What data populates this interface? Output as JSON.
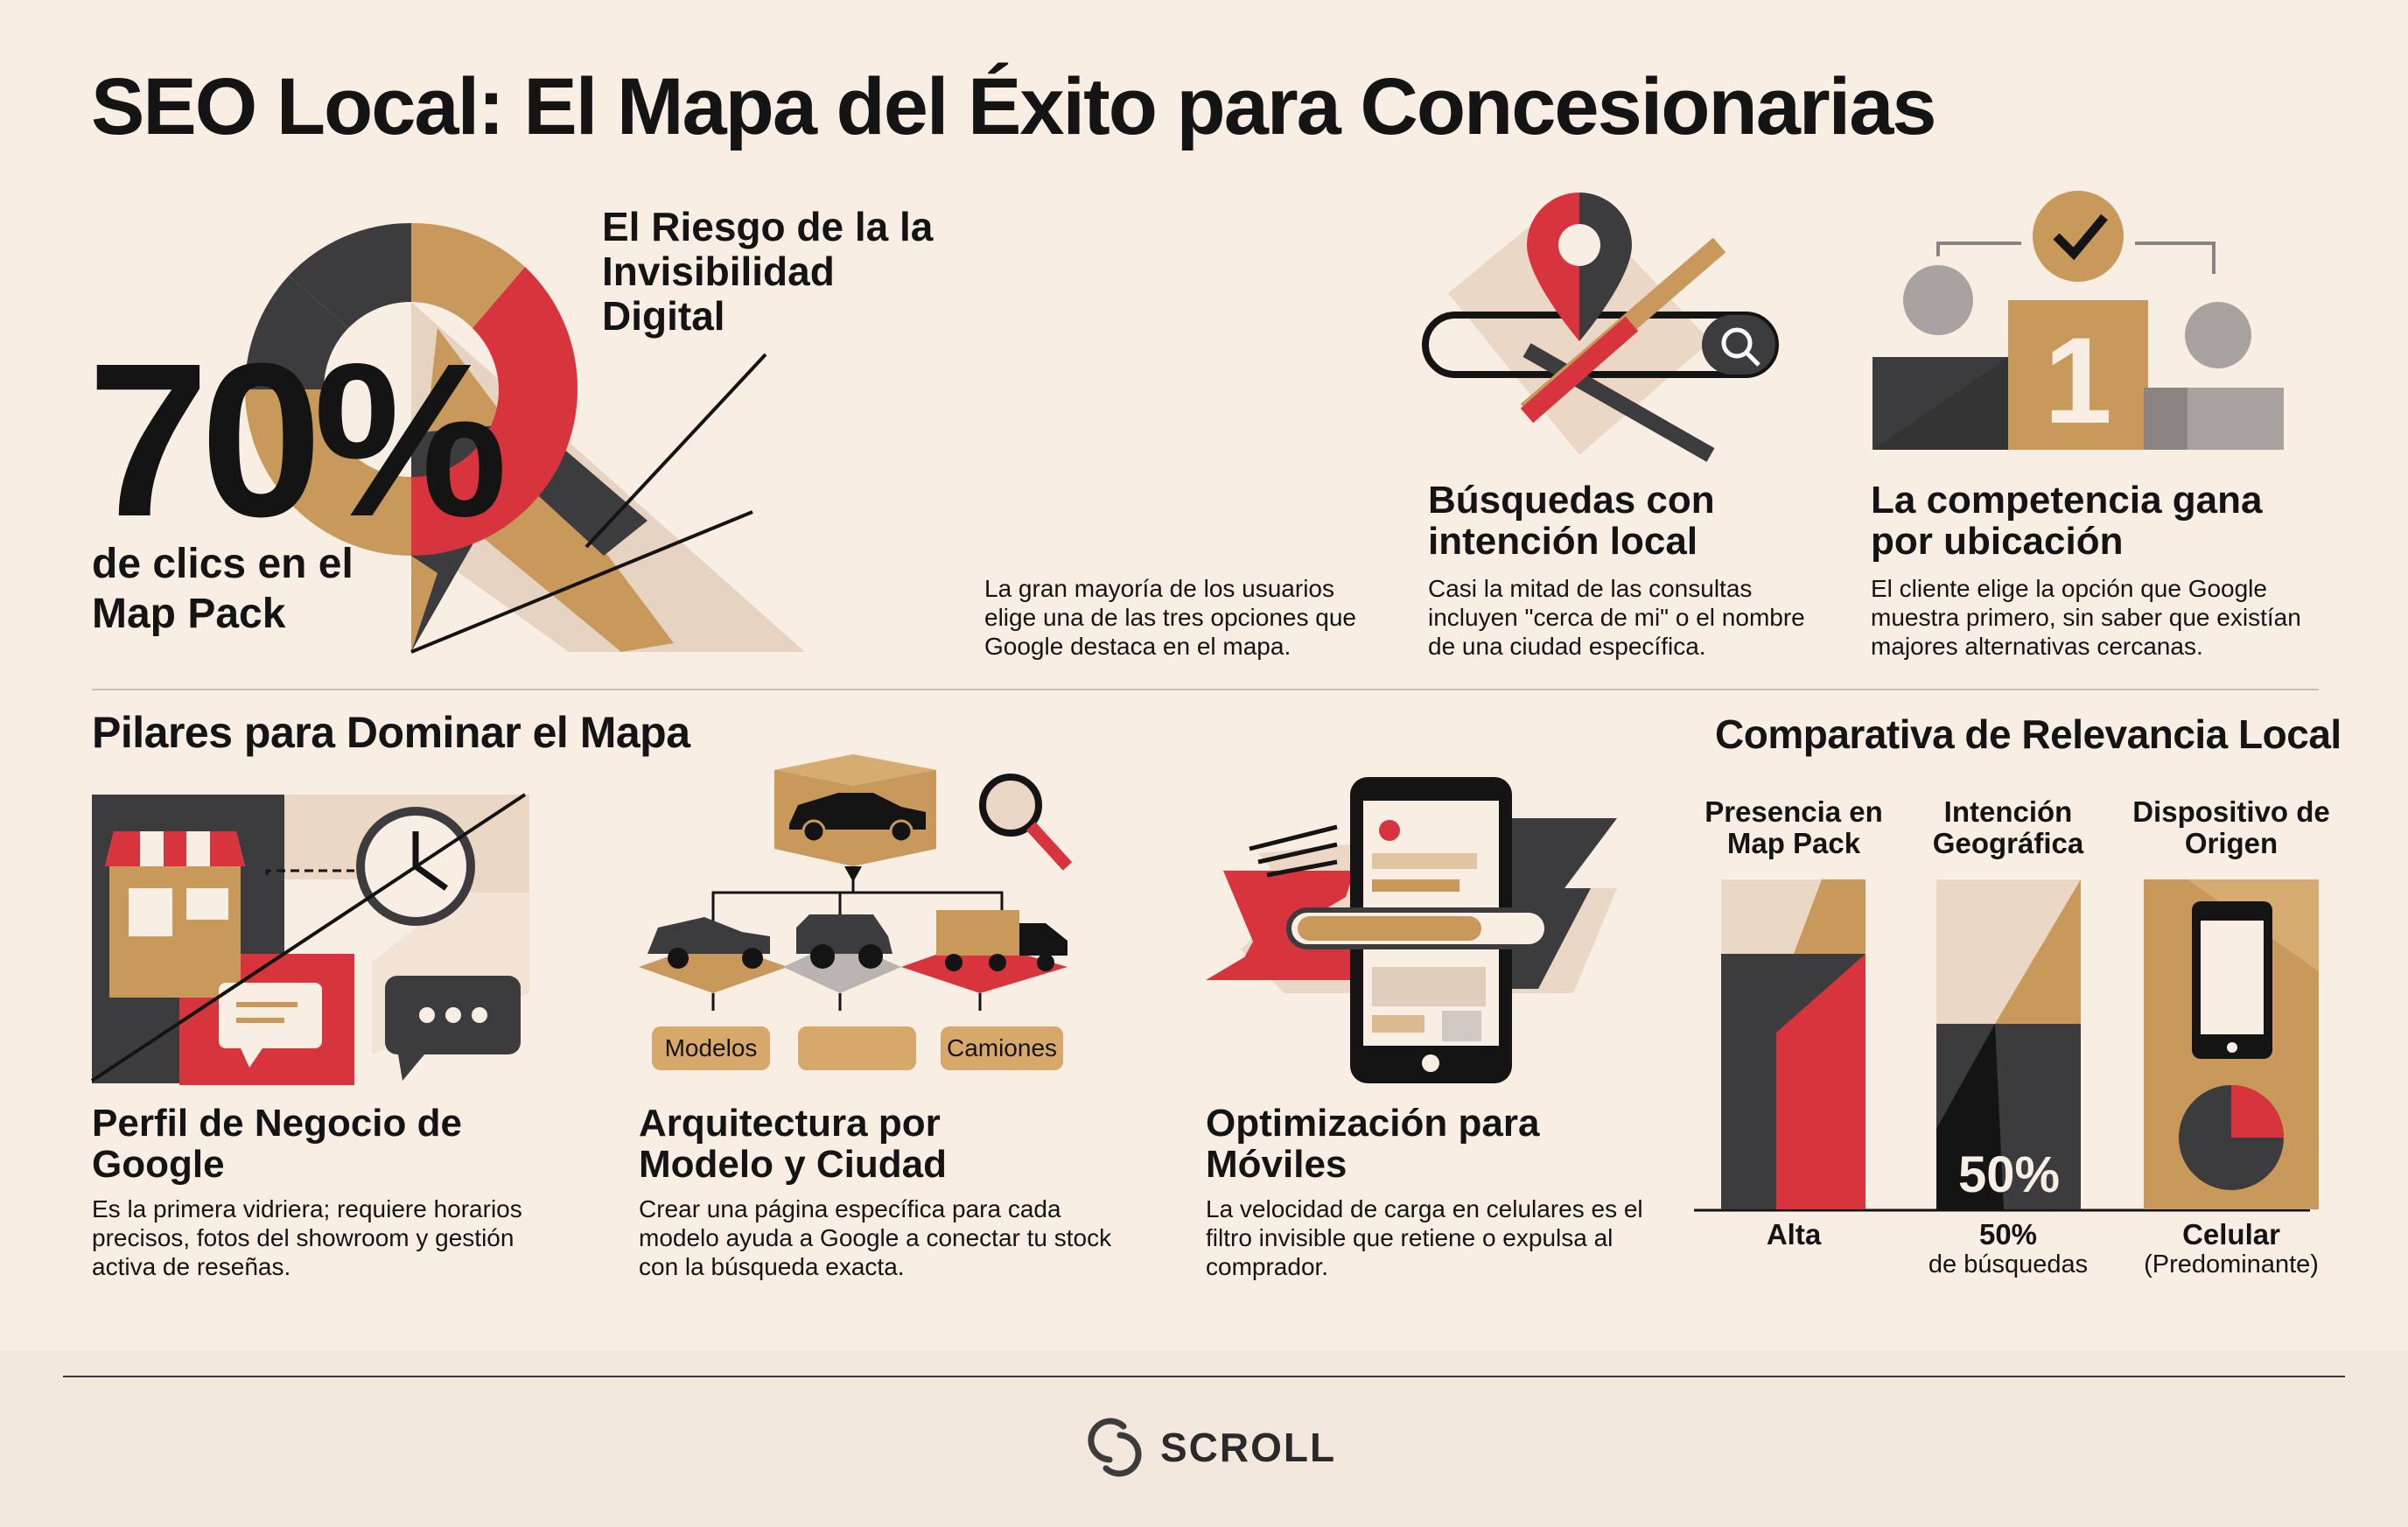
{
  "title": "SEO Local: El Mapa del Éxito para Concesionarias",
  "hero": {
    "percent": "70%",
    "percent_sub": "de clics en el Map Pack",
    "risk_title": "El Riesgo de la la Invisibilidad Digital",
    "risk_desc": "La gran mayoría de los usuarios elige una de las tres opciones que Google destaca en el mapa."
  },
  "cards": [
    {
      "title": "Búsquedas con intención local",
      "desc": "Casi la mitad de las consultas incluyen \"cerca de mi\" o el nombre de una ciudad específica."
    },
    {
      "title": "La competencia gana por ubicación",
      "desc": "El cliente elige la opción que Google muestra primero, sin saber que existían majores alternativas cercanas.",
      "podium_number": "1"
    }
  ],
  "pillars": {
    "section_title": "Pilares para Dominar el Mapa",
    "items": [
      {
        "title": "Perfil de Negocio de Google",
        "desc": "Es la primera vidriera; requiere horarios precisos, fotos del showroom y gestión activa de reseñas."
      },
      {
        "title": "Arquitectura por Modelo y Ciudad",
        "desc": "Crear una página específica para cada modelo ayuda a Google a conectar tu stock con la búsqueda exacta.",
        "labels": [
          "Modelos",
          "",
          "Camiones"
        ]
      },
      {
        "title": "Optimización para Móviles",
        "desc": "La velocidad de carga en celulares es el filtro invisible que retiene o expulsa al comprador."
      }
    ]
  },
  "comparison": {
    "section_title": "Comparativa de Relevancia Local",
    "columns": [
      {
        "head": "Presencia en Map Pack",
        "foot": "Alta",
        "sub": ""
      },
      {
        "head": "Intención Geográfica",
        "foot": "50%",
        "sub": "de búsquedas",
        "overlay": "50%"
      },
      {
        "head": "Dispositivo de Origen",
        "foot": "Celular",
        "sub": "(Predominante)"
      }
    ]
  },
  "footer": {
    "brand": "SCROLL"
  },
  "colors": {
    "background": "#f8eee4",
    "tan": "#c9995c",
    "red": "#d8343d",
    "dark": "#3c3c3e",
    "beige": "#ebd7c5",
    "grey": "#a8a2a0"
  },
  "icons": [
    "map-pin-icon",
    "search-icon",
    "checkmark-icon",
    "storefront-icon",
    "clock-icon",
    "chat-icon",
    "car-icon",
    "truck-icon",
    "magnifier-icon",
    "smartphone-icon",
    "pie-icon",
    "scroll-logo-icon"
  ]
}
